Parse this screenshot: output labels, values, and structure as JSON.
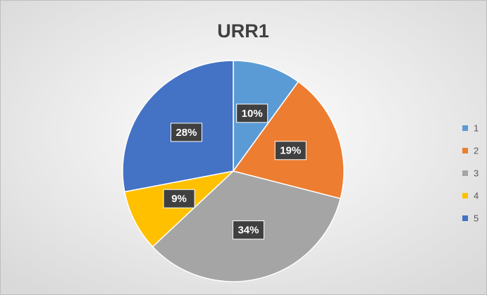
{
  "chart_data": {
    "type": "pie",
    "title": "URR1",
    "categories": [
      "1",
      "2",
      "3",
      "4",
      "5"
    ],
    "values": [
      10,
      19,
      34,
      9,
      28
    ],
    "value_labels": [
      "10%",
      "19%",
      "34%",
      "9%",
      "28%"
    ],
    "colors": [
      "#5b9bd5",
      "#ed7d31",
      "#a5a5a5",
      "#ffc000",
      "#4472c4"
    ],
    "legend": "right"
  }
}
